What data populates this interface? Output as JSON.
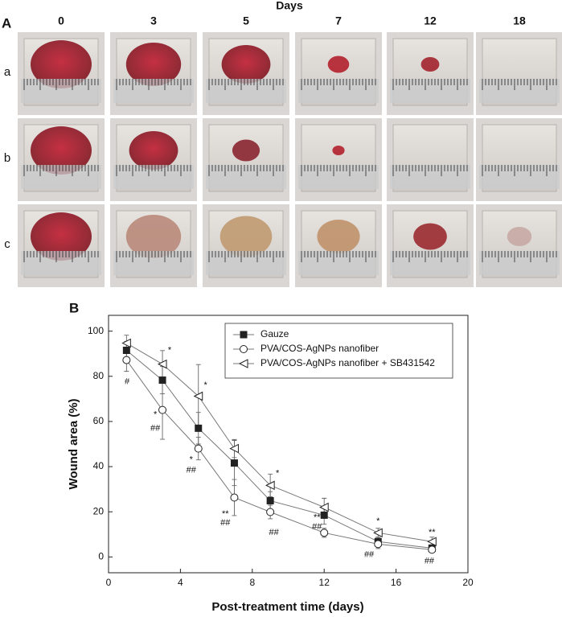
{
  "panel_a": {
    "title": "Days",
    "label": "A",
    "days": [
      "0",
      "3",
      "5",
      "7",
      "12",
      "18"
    ],
    "rows": [
      "a",
      "b",
      "c"
    ]
  },
  "chart_data": {
    "type": "line",
    "label": "B",
    "xlabel": "Post-treatment time (days)",
    "ylabel": "Wound area (%)",
    "x": [
      1,
      3,
      5,
      7,
      9,
      12,
      15,
      18
    ],
    "xlim": [
      0,
      20
    ],
    "xticks": [
      0,
      4,
      8,
      12,
      16,
      20
    ],
    "ylim": [
      -7,
      107
    ],
    "yticks": [
      0,
      20,
      40,
      60,
      80,
      100
    ],
    "legend": "upper right",
    "series": [
      {
        "name": "Gauze",
        "color": "#222222",
        "marker": "square",
        "values": [
          91.5,
          78.3,
          57,
          41.6,
          24.9,
          18.5,
          6.8,
          3.9
        ],
        "errors": [
          4,
          6,
          7,
          10,
          4,
          4,
          2,
          1.5
        ]
      },
      {
        "name": "PVA/COS-AgNPs nanofiber",
        "color": "#222222",
        "marker": "circle",
        "values": [
          87.2,
          65.1,
          48,
          26.3,
          19.9,
          10.7,
          5.7,
          3.2
        ],
        "errors": [
          5,
          13,
          5,
          8,
          3,
          2,
          2,
          1
        ]
      },
      {
        "name": "PVA/COS-AgNPs nanofiber + SB431542",
        "color": "#222222",
        "marker": "triangle-left",
        "values": [
          94.7,
          85.4,
          71.2,
          48,
          31.7,
          22,
          10.7,
          6.8
        ],
        "errors": [
          3.5,
          6,
          14,
          4,
          5,
          4,
          2,
          2
        ]
      }
    ],
    "annotations": [
      {
        "text": "*",
        "x": 3.4,
        "y": 91.5
      },
      {
        "text": "#",
        "x": 1.03,
        "y": 77.6
      },
      {
        "text": "*",
        "x": 2.6,
        "y": 63
      },
      {
        "text": "##",
        "x": 2.6,
        "y": 57
      },
      {
        "text": "*",
        "x": 5.4,
        "y": 76
      },
      {
        "text": "*",
        "x": 4.6,
        "y": 43
      },
      {
        "text": "##",
        "x": 4.6,
        "y": 38.4
      },
      {
        "text": "**",
        "x": 6.5,
        "y": 18.9
      },
      {
        "text": "##",
        "x": 6.5,
        "y": 15
      },
      {
        "text": "*",
        "x": 9.4,
        "y": 37
      },
      {
        "text": "##",
        "x": 9.2,
        "y": 10.7
      },
      {
        "text": "**",
        "x": 11.6,
        "y": 17.4
      },
      {
        "text": "##",
        "x": 11.6,
        "y": 13.2
      },
      {
        "text": "*",
        "x": 15,
        "y": 15.7
      },
      {
        "text": "##",
        "x": 14.5,
        "y": 1
      },
      {
        "text": "**",
        "x": 18,
        "y": 10.7
      },
      {
        "text": "##",
        "x": 17.85,
        "y": -1.8
      }
    ]
  }
}
